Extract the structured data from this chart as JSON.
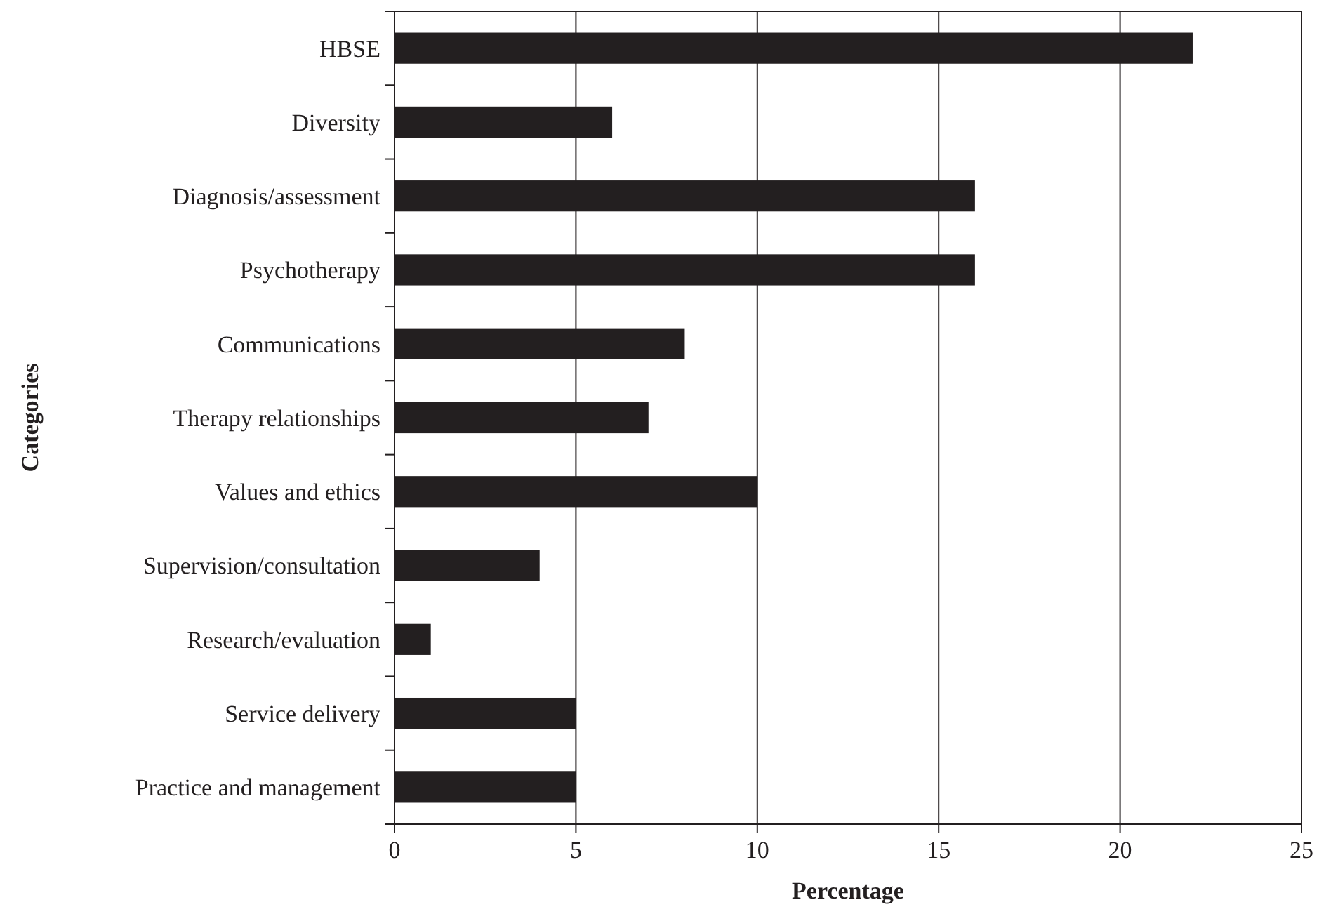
{
  "chart_data": {
    "type": "bar",
    "orientation": "horizontal",
    "xlabel": "Percentage",
    "ylabel": "Categories",
    "categories": [
      "HBSE",
      "Diversity",
      "Diagnosis/assessment",
      "Psychotherapy",
      "Communications",
      "Therapy relationships",
      "Values and ethics",
      "Supervision/consultation",
      "Research/evaluation",
      "Service delivery",
      "Practice and management"
    ],
    "values": [
      22,
      6,
      16,
      16,
      8,
      7,
      10,
      4,
      1,
      5,
      5
    ],
    "color": "#231f20",
    "xlim": [
      0,
      25
    ],
    "xticks": [
      0,
      5,
      10,
      15,
      20,
      25
    ],
    "grid": "x"
  }
}
